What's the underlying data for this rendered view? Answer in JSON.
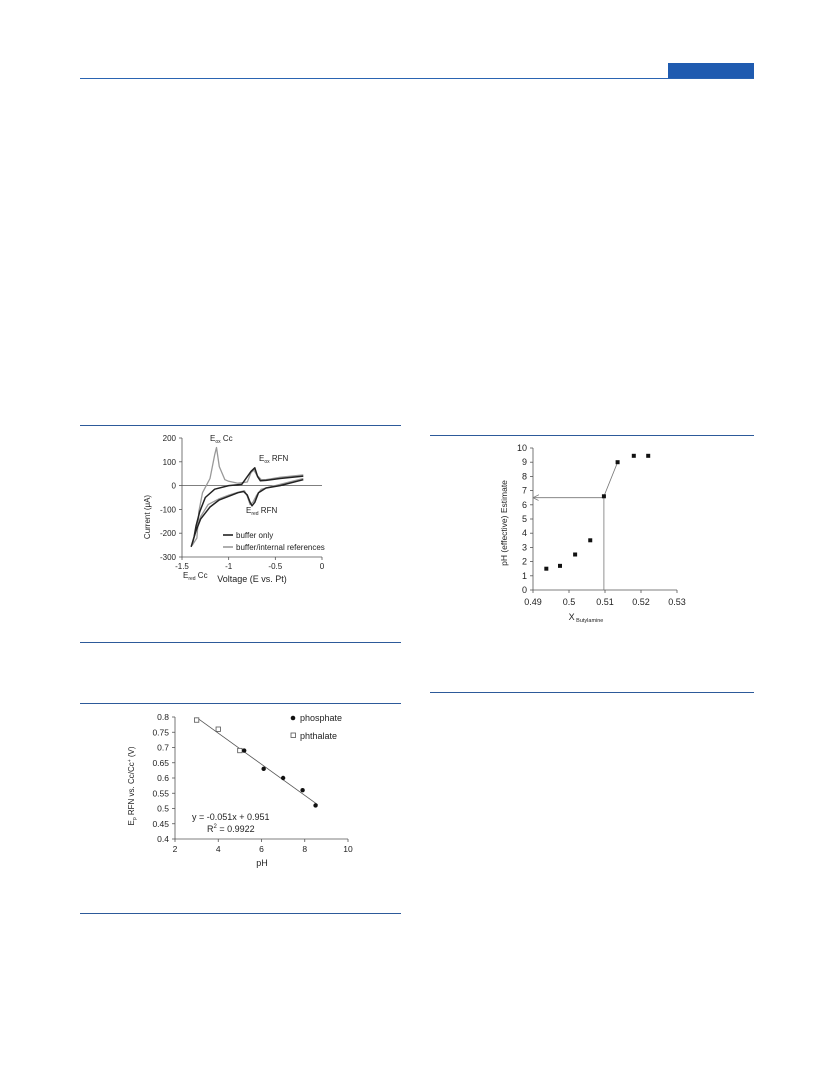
{
  "header": {
    "accent_color": "#1f5bb0"
  },
  "chart_data": [
    {
      "type": "line",
      "title": "",
      "xlabel": "Voltage (E vs. Pt)",
      "ylabel": "Current (μA)",
      "xlim": [
        -1.5,
        0
      ],
      "ylim": [
        -300,
        200
      ],
      "xticks": [
        "-1.5",
        "-1",
        "-0.5",
        "0"
      ],
      "yticks": [
        "200",
        "100",
        "0",
        "-100",
        "-200",
        "-300"
      ],
      "annotations": {
        "eox_cc": {
          "main": "E",
          "sub": "ox",
          "rest": " Cc"
        },
        "eox_rfn": {
          "main": "E",
          "sub": "ox",
          "rest": " RFN"
        },
        "ered_rfn": {
          "main": "E",
          "sub": "red",
          "rest": " RFN"
        },
        "ered_cc": {
          "main": "E",
          "sub": "red",
          "rest": " Cc"
        }
      },
      "legend": "lower-right",
      "series": [
        {
          "name": "buffer only",
          "color": "#222222",
          "x": [
            -0.2,
            -0.45,
            -0.6,
            -0.66,
            -0.69,
            -0.72,
            -0.76,
            -0.86,
            -1.0,
            -1.15,
            -1.25,
            -1.31,
            -1.35,
            -1.37,
            -1.4,
            -1.35,
            -1.3,
            -1.2,
            -1.1,
            -1.0,
            -0.9,
            -0.84,
            -0.8,
            -0.77,
            -0.75,
            -0.72,
            -0.68,
            -0.6,
            -0.45,
            -0.2
          ],
          "y": [
            40,
            30,
            22,
            20,
            38,
            75,
            60,
            5,
            0,
            -15,
            -50,
            -110,
            -170,
            -215,
            -255,
            -190,
            -140,
            -90,
            -60,
            -45,
            -30,
            -25,
            -40,
            -70,
            -85,
            -70,
            -30,
            -10,
            0,
            25
          ]
        },
        {
          "name": "buffer/internal references",
          "color": "#999999",
          "x": [
            -0.2,
            -0.45,
            -0.6,
            -0.65,
            -0.7,
            -0.73,
            -0.76,
            -0.8,
            -0.9,
            -1.0,
            -1.04,
            -1.1,
            -1.13,
            -1.15,
            -1.2,
            -1.28,
            -1.32,
            -1.34,
            -1.39,
            -1.35,
            -1.3,
            -1.22,
            -1.1,
            -1.0,
            -0.9,
            -0.83,
            -0.8,
            -0.77,
            -0.74,
            -0.7,
            -0.65,
            -0.45,
            -0.2
          ],
          "y": [
            45,
            35,
            25,
            25,
            45,
            65,
            55,
            15,
            10,
            18,
            25,
            80,
            160,
            130,
            30,
            -30,
            -110,
            -220,
            -250,
            -180,
            -130,
            -80,
            -55,
            -40,
            -28,
            -22,
            -45,
            -80,
            -70,
            -40,
            -15,
            5,
            30
          ]
        }
      ]
    },
    {
      "type": "scatter",
      "title": "",
      "xlabel": "pH",
      "ylabel_main": "E",
      "ylabel_sub": "p",
      "ylabel_rest": " RFN vs. Cc/Cc",
      "ylabel_sup": "+",
      "ylabel_unit": " (V)",
      "xlim": [
        2,
        10
      ],
      "ylim": [
        0.4,
        0.8
      ],
      "xticks": [
        "2",
        "4",
        "6",
        "8",
        "10"
      ],
      "yticks": [
        "0.8",
        "0.75",
        "0.7",
        "0.65",
        "0.6",
        "0.55",
        "0.5",
        "0.45",
        "0.4"
      ],
      "legend": "top-right",
      "series": [
        {
          "name": "phosphate",
          "marker": "filled-circle",
          "x": [
            5.2,
            6.1,
            7.0,
            7.9,
            8.5
          ],
          "y": [
            0.69,
            0.63,
            0.6,
            0.56,
            0.51
          ]
        },
        {
          "name": "phthalate",
          "marker": "open-square",
          "x": [
            3.0,
            4.0,
            5.0
          ],
          "y": [
            0.79,
            0.76,
            0.69
          ]
        }
      ],
      "trendline": {
        "slope": -0.051,
        "intercept": 0.951,
        "x_range": [
          3.0,
          8.6
        ],
        "equation": "y = -0.051x + 0.951",
        "r2_label": "R",
        "r2_sup": "2",
        "r2_value": " = 0.9922"
      }
    },
    {
      "type": "scatter",
      "title": "",
      "xlabel_main": "X",
      "xlabel_sub": " Butylamine",
      "ylabel": "pH (effective) Estimate",
      "xlim": [
        0.49,
        0.53
      ],
      "ylim": [
        0,
        10
      ],
      "xticks": [
        "0.49",
        "0.5",
        "0.51",
        "0.52",
        "0.53"
      ],
      "yticks": [
        "10",
        "9",
        "8",
        "7",
        "6",
        "5",
        "4",
        "3",
        "2",
        "1",
        "0"
      ],
      "series": [
        {
          "name": "",
          "marker": "filled-square",
          "x": [
            0.4937,
            0.4975,
            0.5017,
            0.5059,
            0.5097,
            0.5135,
            0.518,
            0.522
          ],
          "y": [
            1.5,
            1.7,
            2.5,
            3.5,
            6.6,
            9.0,
            9.45,
            9.45
          ]
        }
      ],
      "connect_points": [
        [
          0.5097,
          0.0
        ],
        [
          0.5097,
          6.6
        ],
        [
          0.5135,
          9.0
        ]
      ],
      "arrow_to_y_axis": {
        "x": 0.5097,
        "y": 6.5
      }
    }
  ]
}
